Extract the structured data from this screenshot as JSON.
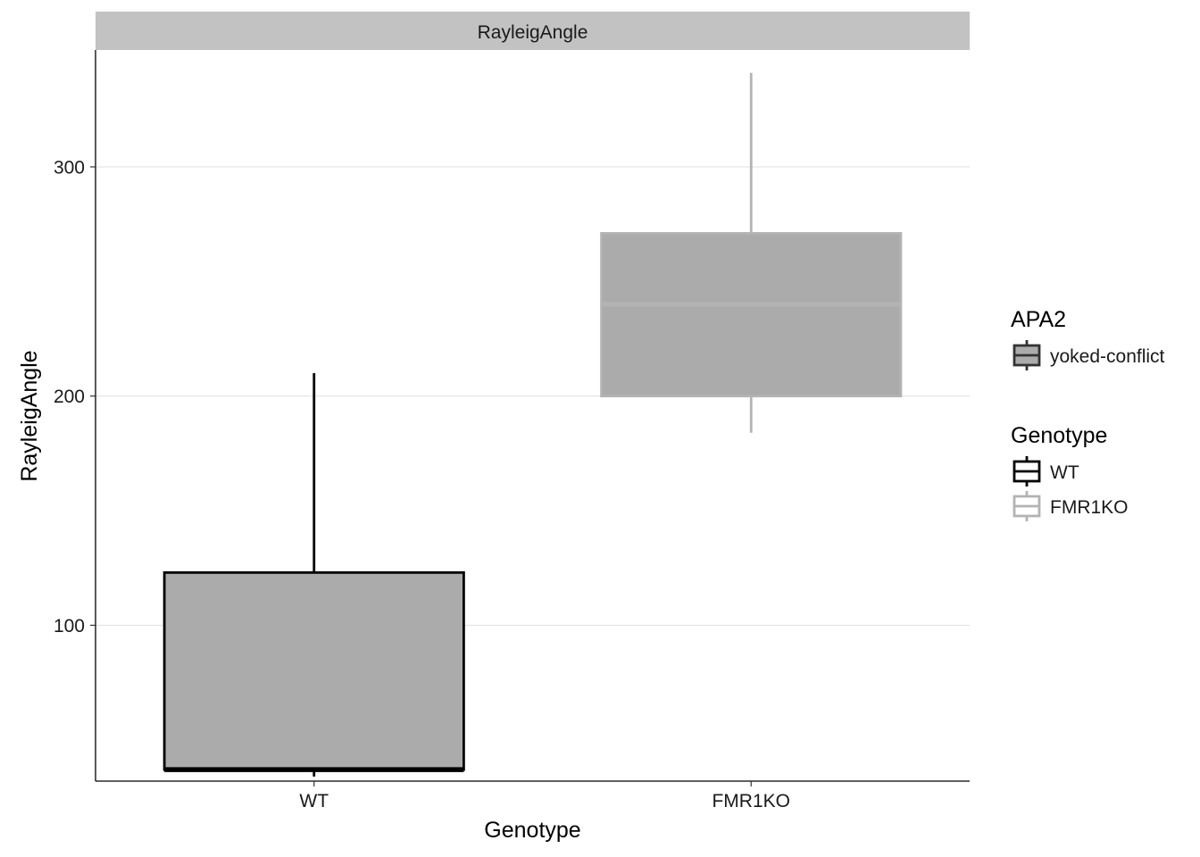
{
  "chart_data": {
    "type": "box",
    "facet_title": "RayleigAngle",
    "xlabel": "Genotype",
    "ylabel": "RayleigAngle",
    "categories": [
      "WT",
      "FMR1KO"
    ],
    "ylim": [
      32,
      351
    ],
    "yticks": [
      100,
      200,
      300
    ],
    "grid": "horizontal major",
    "fill_color": "#ababab",
    "boxes": [
      {
        "category": "WT",
        "whisker_low": 34,
        "q1": 37,
        "median": 37,
        "q3": 123,
        "whisker_high": 210,
        "outline_color": "#000000"
      },
      {
        "category": "FMR1KO",
        "whisker_low": 184,
        "q1": 200,
        "median": 240,
        "q3": 271,
        "whisker_high": 341,
        "outline_color": "#b3b3b3"
      }
    ],
    "legends": [
      {
        "title": "APA2",
        "entries": [
          {
            "label": "yoked-conflict",
            "fill": "#ababab",
            "stroke": "#333333"
          }
        ]
      },
      {
        "title": "Genotype",
        "entries": [
          {
            "label": "WT",
            "fill": "#ffffff",
            "stroke": "#000000"
          },
          {
            "label": "FMR1KO",
            "fill": "#ffffff",
            "stroke": "#b3b3b3"
          }
        ]
      }
    ],
    "legend_position": "right"
  }
}
